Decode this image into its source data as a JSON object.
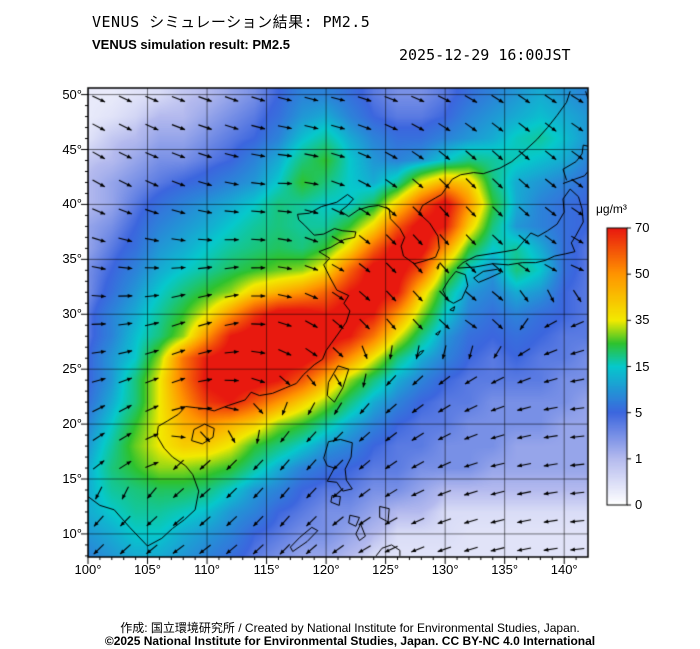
{
  "header": {
    "title_jp": "VENUS シミュレーション結果: PM2.5",
    "title_en": "VENUS simulation result: PM2.5",
    "timestamp": "2025-12-29 16:00JST"
  },
  "footer": {
    "credit_line": "作成: 国立環境研究所 / Created by National Institute for Environmental Studies, Japan.",
    "copyright_line": "©2025 National Institute for Environmental Studies, Japan. CC BY-NC 4.0 International"
  },
  "chart_data": {
    "type": "heatmap",
    "title": "VENUS simulation result: PM2.5",
    "datetime": "2025-12-29 16:00JST",
    "variable": "PM2.5",
    "unit": "μg/m³",
    "x_axis": {
      "ticks": [
        "100°",
        "105°",
        "110°",
        "115°",
        "120°",
        "125°",
        "130°",
        "135°",
        "140°"
      ],
      "range": [
        100,
        142
      ]
    },
    "y_axis": {
      "ticks": [
        "50°",
        "45°",
        "40°",
        "35°",
        "30°",
        "25°",
        "20°",
        "15°",
        "10°"
      ],
      "range": [
        7.9,
        50.6
      ]
    },
    "colorbar": {
      "label": "μg/m³",
      "tick_labels": [
        "70",
        "50",
        "35",
        "15",
        "5",
        "1",
        "0"
      ],
      "levels": [
        0,
        1,
        5,
        15,
        35,
        50,
        70
      ],
      "orientation": "vertical"
    },
    "color_stops": [
      {
        "v": 0,
        "color": "#ffffff"
      },
      {
        "v": 1,
        "color": "#b4baee"
      },
      {
        "v": 5,
        "color": "#3c66de"
      },
      {
        "v": 15,
        "color": "#06c8cc"
      },
      {
        "v": 25,
        "color": "#2ec22e"
      },
      {
        "v": 35,
        "color": "#f2ea00"
      },
      {
        "v": 50,
        "color": "#ff9500"
      },
      {
        "v": 70,
        "color": "#e8190f"
      }
    ],
    "grid": {
      "lon_start": 100,
      "lon_step": 2,
      "lat_start": 50,
      "lat_step": -2,
      "values": [
        [
          0.3,
          0.3,
          0.4,
          0.5,
          0.8,
          1,
          2,
          3,
          5,
          8,
          8,
          6,
          4,
          3,
          3,
          4,
          6,
          8,
          10,
          12,
          10,
          8
        ],
        [
          0.3,
          0.4,
          0.6,
          1,
          1,
          2,
          3,
          4,
          6,
          10,
          12,
          8,
          5,
          4,
          4,
          5,
          8,
          10,
          12,
          14,
          12,
          10
        ],
        [
          0.4,
          0.8,
          1,
          2,
          2,
          3,
          4,
          5,
          8,
          14,
          18,
          12,
          8,
          6,
          6,
          8,
          10,
          12,
          16,
          18,
          14,
          10
        ],
        [
          0.8,
          1,
          2,
          3,
          3,
          4,
          5,
          8,
          12,
          20,
          25,
          15,
          10,
          8,
          10,
          15,
          20,
          18,
          16,
          14,
          12,
          8
        ],
        [
          1,
          2,
          3,
          4,
          5,
          6,
          8,
          10,
          15,
          25,
          20,
          15,
          12,
          18,
          35,
          45,
          40,
          20,
          12,
          10,
          8,
          6
        ],
        [
          1,
          2,
          4,
          6,
          8,
          10,
          12,
          15,
          20,
          18,
          15,
          15,
          22,
          40,
          60,
          75,
          50,
          25,
          12,
          8,
          6,
          5
        ],
        [
          2,
          3,
          5,
          8,
          10,
          12,
          15,
          18,
          20,
          18,
          18,
          25,
          38,
          60,
          75,
          70,
          40,
          20,
          10,
          8,
          6,
          5
        ],
        [
          2,
          4,
          6,
          10,
          12,
          15,
          18,
          20,
          22,
          20,
          25,
          38,
          58,
          75,
          75,
          50,
          25,
          15,
          18,
          12,
          6,
          4
        ],
        [
          3,
          5,
          8,
          12,
          15,
          18,
          22,
          25,
          28,
          30,
          38,
          58,
          75,
          75,
          60,
          30,
          15,
          10,
          20,
          15,
          6,
          4
        ],
        [
          3,
          6,
          10,
          15,
          20,
          25,
          30,
          40,
          45,
          50,
          58,
          70,
          75,
          70,
          40,
          20,
          10,
          8,
          12,
          10,
          5,
          4
        ],
        [
          4,
          8,
          12,
          18,
          25,
          35,
          50,
          65,
          75,
          75,
          70,
          75,
          70,
          50,
          30,
          15,
          8,
          6,
          8,
          6,
          5,
          4
        ],
        [
          4,
          8,
          14,
          20,
          30,
          50,
          70,
          75,
          75,
          75,
          75,
          70,
          55,
          35,
          20,
          10,
          6,
          5,
          6,
          5,
          4,
          4
        ],
        [
          5,
          10,
          15,
          30,
          55,
          70,
          75,
          75,
          75,
          75,
          65,
          50,
          35,
          20,
          12,
          8,
          5,
          4,
          5,
          4,
          4,
          3
        ],
        [
          5,
          10,
          20,
          35,
          55,
          72,
          75,
          75,
          70,
          60,
          45,
          30,
          20,
          12,
          8,
          5,
          4,
          4,
          4,
          4,
          3,
          3
        ],
        [
          6,
          12,
          20,
          35,
          50,
          65,
          70,
          60,
          50,
          40,
          30,
          20,
          12,
          8,
          5,
          4,
          4,
          3,
          3,
          3,
          3,
          2
        ],
        [
          8,
          15,
          25,
          35,
          45,
          50,
          45,
          40,
          30,
          25,
          18,
          12,
          8,
          5,
          4,
          4,
          3,
          3,
          3,
          3,
          2,
          2
        ],
        [
          10,
          18,
          28,
          35,
          40,
          40,
          35,
          25,
          20,
          15,
          10,
          8,
          5,
          4,
          4,
          3,
          3,
          3,
          2,
          2,
          2,
          2
        ],
        [
          12,
          20,
          25,
          30,
          30,
          28,
          25,
          18,
          12,
          8,
          6,
          5,
          4,
          4,
          3,
          3,
          3,
          2,
          2,
          2,
          2,
          2
        ],
        [
          12,
          18,
          20,
          22,
          22,
          20,
          15,
          10,
          8,
          5,
          4,
          4,
          3,
          3,
          2,
          1,
          1,
          1,
          1,
          1,
          1,
          1
        ],
        [
          12,
          15,
          18,
          18,
          16,
          14,
          10,
          8,
          5,
          4,
          3,
          3,
          2,
          1,
          1,
          0.5,
          0.5,
          0.5,
          0.5,
          0.5,
          0.5,
          0.5
        ],
        [
          10,
          12,
          15,
          15,
          12,
          10,
          8,
          5,
          4,
          3,
          3,
          2,
          1,
          0.5,
          0.5,
          0.5,
          0.4,
          0.4,
          0.4,
          0.4,
          0.4,
          0.4
        ],
        [
          8,
          10,
          12,
          12,
          10,
          8,
          6,
          4,
          3,
          2,
          2,
          1,
          0.5,
          0.4,
          0.4,
          0.4,
          0.4,
          0.4,
          0.4,
          0.4,
          0.4,
          0.4
        ]
      ]
    },
    "wind": {
      "lon_start": 100,
      "lon_step": 4.2,
      "lat_start": 50,
      "lat_step": -4.2,
      "angles_deg": [
        [
          -25,
          -25,
          -20,
          -20,
          -15,
          -15,
          -20,
          -25,
          -30,
          -35,
          -30
        ],
        [
          -30,
          -25,
          -20,
          -15,
          -10,
          -15,
          -25,
          -35,
          -40,
          -40,
          -35
        ],
        [
          -30,
          -25,
          -20,
          -10,
          0,
          -20,
          -35,
          -45,
          -45,
          -40,
          -35
        ],
        [
          -20,
          -15,
          -10,
          0,
          -10,
          -30,
          -45,
          -50,
          -45,
          -40,
          -30
        ],
        [
          -10,
          0,
          10,
          10,
          -10,
          -30,
          -45,
          -50,
          -40,
          -30,
          -20
        ],
        [
          0,
          10,
          20,
          10,
          -20,
          -40,
          -50,
          -45,
          -30,
          210,
          200
        ],
        [
          10,
          20,
          20,
          0,
          -30,
          -45,
          230,
          220,
          210,
          200,
          190
        ],
        [
          30,
          30,
          10,
          -20,
          230,
          225,
          220,
          210,
          200,
          190,
          185
        ],
        [
          40,
          30,
          220,
          225,
          230,
          225,
          215,
          205,
          195,
          190,
          185
        ],
        [
          230,
          225,
          220,
          225,
          230,
          220,
          210,
          200,
          195,
          190,
          185
        ],
        [
          225,
          220,
          215,
          220,
          225,
          215,
          205,
          200,
          195,
          190,
          185
        ]
      ]
    }
  }
}
